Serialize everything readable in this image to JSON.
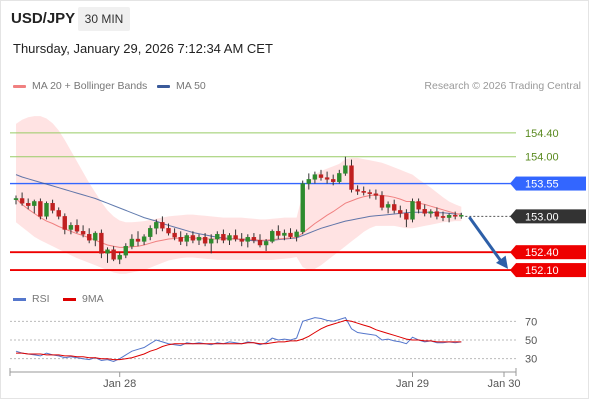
{
  "header": {
    "symbol": "USD/JPY",
    "timeframe": "30 MIN",
    "datetime": "Thursday, January 29, 2026 7:12:34 AM CET"
  },
  "legend": {
    "ma20_label": "MA 20 + Bollinger Bands",
    "ma20_color": "#f08080",
    "ma50_label": "MA 50",
    "ma50_color": "#3a5a9a",
    "credit": "Research © 2026 Trading Central"
  },
  "rsi_legend": {
    "rsi_label": "RSI",
    "rsi_color": "#5577cc",
    "ma_label": "9MA",
    "ma_color": "#dd0000"
  },
  "colors": {
    "up": "#2e8b2e",
    "down": "#c02020",
    "band": "#ffe0e0",
    "pivot": "#3366ff",
    "support": "#ee0000",
    "resistance": "#99cc66",
    "current": "#333333",
    "arrow": "#2d5fa8"
  },
  "chart_data": {
    "type": "candlestick",
    "ylim": [
      151.85,
      154.95
    ],
    "levels": [
      {
        "label": "154.40",
        "value": 154.4,
        "kind": "resistance"
      },
      {
        "label": "154.00",
        "value": 154.0,
        "kind": "resistance"
      },
      {
        "label": "153.55",
        "value": 153.55,
        "kind": "pivot"
      },
      {
        "label": "153.00",
        "value": 153.0,
        "kind": "current"
      },
      {
        "label": "152.40",
        "value": 152.4,
        "kind": "support"
      },
      {
        "label": "152.10",
        "value": 152.1,
        "kind": "support"
      }
    ],
    "x_ticks": [
      {
        "label": "Jan 28",
        "index": 17
      },
      {
        "label": "Jan 29",
        "index": 65
      },
      {
        "label": "Jan 30",
        "index": 80
      }
    ],
    "candles": [
      [
        153.28,
        153.35,
        153.2,
        153.3
      ],
      [
        153.3,
        153.4,
        153.18,
        153.22
      ],
      [
        153.22,
        153.3,
        153.12,
        153.18
      ],
      [
        153.18,
        153.28,
        153.05,
        153.25
      ],
      [
        153.25,
        153.3,
        152.95,
        153.0
      ],
      [
        153.0,
        153.25,
        152.95,
        153.22
      ],
      [
        153.22,
        153.28,
        153.05,
        153.1
      ],
      [
        153.1,
        153.15,
        152.95,
        153.0
      ],
      [
        153.0,
        153.05,
        152.7,
        152.78
      ],
      [
        152.78,
        152.9,
        152.7,
        152.85
      ],
      [
        152.85,
        152.95,
        152.72,
        152.75
      ],
      [
        152.75,
        152.85,
        152.65,
        152.7
      ],
      [
        152.7,
        152.8,
        152.55,
        152.6
      ],
      [
        152.6,
        152.75,
        152.5,
        152.72
      ],
      [
        152.72,
        152.78,
        152.3,
        152.38
      ],
      [
        152.38,
        152.48,
        152.22,
        152.44
      ],
      [
        152.44,
        152.5,
        152.25,
        152.28
      ],
      [
        152.28,
        152.4,
        152.2,
        152.35
      ],
      [
        152.35,
        152.55,
        152.3,
        152.5
      ],
      [
        152.5,
        152.7,
        152.45,
        152.62
      ],
      [
        152.62,
        152.75,
        152.5,
        152.58
      ],
      [
        152.58,
        152.7,
        152.52,
        152.66
      ],
      [
        152.66,
        152.85,
        152.6,
        152.8
      ],
      [
        152.8,
        152.95,
        152.7,
        152.9
      ],
      [
        152.9,
        153.0,
        152.75,
        152.8
      ],
      [
        152.8,
        152.88,
        152.68,
        152.72
      ],
      [
        152.72,
        152.8,
        152.6,
        152.65
      ],
      [
        152.65,
        152.75,
        152.52,
        152.58
      ],
      [
        152.58,
        152.72,
        152.5,
        152.68
      ],
      [
        152.68,
        152.75,
        152.55,
        152.6
      ],
      [
        152.6,
        152.7,
        152.52,
        152.65
      ],
      [
        152.65,
        152.72,
        152.5,
        152.55
      ],
      [
        152.55,
        152.7,
        152.38,
        152.62
      ],
      [
        152.62,
        152.75,
        152.55,
        152.7
      ],
      [
        152.7,
        152.78,
        152.55,
        152.6
      ],
      [
        152.6,
        152.72,
        152.52,
        152.68
      ],
      [
        152.68,
        152.78,
        152.58,
        152.62
      ],
      [
        152.62,
        152.72,
        152.5,
        152.58
      ],
      [
        152.58,
        152.7,
        152.48,
        152.65
      ],
      [
        152.65,
        152.72,
        152.55,
        152.6
      ],
      [
        152.6,
        152.7,
        152.48,
        152.52
      ],
      [
        152.52,
        152.62,
        152.42,
        152.58
      ],
      [
        152.58,
        152.78,
        152.55,
        152.75
      ],
      [
        152.75,
        152.85,
        152.62,
        152.68
      ],
      [
        152.68,
        152.78,
        152.6,
        152.72
      ],
      [
        152.72,
        152.8,
        152.62,
        152.66
      ],
      [
        152.66,
        152.78,
        152.58,
        152.74
      ],
      [
        152.74,
        153.6,
        152.7,
        153.55
      ],
      [
        153.55,
        153.72,
        153.45,
        153.62
      ],
      [
        153.62,
        153.75,
        153.55,
        153.7
      ],
      [
        153.7,
        153.78,
        153.6,
        153.65
      ],
      [
        153.65,
        153.75,
        153.55,
        153.62
      ],
      [
        153.62,
        153.7,
        153.52,
        153.58
      ],
      [
        153.58,
        153.78,
        153.55,
        153.72
      ],
      [
        153.72,
        154.0,
        153.68,
        153.85
      ],
      [
        153.85,
        153.95,
        153.4,
        153.45
      ],
      [
        153.45,
        153.52,
        153.36,
        153.42
      ],
      [
        153.42,
        153.5,
        153.35,
        153.4
      ],
      [
        153.4,
        153.45,
        153.3,
        153.38
      ],
      [
        153.38,
        153.45,
        153.28,
        153.35
      ],
      [
        153.35,
        153.42,
        153.1,
        153.15
      ],
      [
        153.15,
        153.25,
        153.05,
        153.2
      ],
      [
        153.2,
        153.28,
        153.05,
        153.1
      ],
      [
        153.1,
        153.18,
        152.98,
        153.05
      ],
      [
        153.05,
        153.12,
        152.82,
        152.95
      ],
      [
        152.95,
        153.3,
        152.9,
        153.25
      ],
      [
        153.25,
        153.3,
        153.05,
        153.12
      ],
      [
        153.12,
        153.2,
        153.0,
        153.05
      ],
      [
        153.05,
        153.12,
        152.98,
        153.08
      ],
      [
        153.08,
        153.15,
        152.95,
        153.0
      ],
      [
        153.0,
        153.08,
        152.92,
        152.98
      ],
      [
        152.98,
        153.05,
        152.9,
        153.02
      ],
      [
        153.02,
        153.08,
        152.95,
        153.0
      ],
      [
        153.0,
        153.06,
        152.96,
        153.02
      ]
    ],
    "ma20": [
      153.3,
      153.2,
      153.12,
      153.05,
      152.98,
      152.92,
      152.88,
      152.83,
      152.79,
      152.75,
      152.71,
      152.68,
      152.64,
      152.6,
      152.56,
      152.52,
      152.5,
      152.48,
      152.48,
      152.49,
      152.5,
      152.52,
      152.55,
      152.58,
      152.6,
      152.62,
      152.63,
      152.64,
      152.65,
      152.64,
      152.63,
      152.62,
      152.62,
      152.62,
      152.62,
      152.62,
      152.62,
      152.62,
      152.62,
      152.61,
      152.6,
      152.6,
      152.61,
      152.62,
      152.63,
      152.64,
      152.65,
      152.72,
      152.8,
      152.88,
      152.95,
      153.02,
      153.08,
      153.15,
      153.22,
      153.26,
      153.3,
      153.33,
      153.35,
      153.36,
      153.35,
      153.34,
      153.32,
      153.29,
      153.25,
      153.25,
      153.22,
      153.2,
      153.17,
      153.14,
      153.11,
      153.08,
      153.05,
      153.03
    ],
    "ma50": [
      153.7,
      153.66,
      153.63,
      153.6,
      153.57,
      153.54,
      153.51,
      153.48,
      153.45,
      153.42,
      153.39,
      153.36,
      153.33,
      153.3,
      153.26,
      153.22,
      153.18,
      153.14,
      153.1,
      153.06,
      153.02,
      152.98,
      152.95,
      152.92,
      152.88,
      152.85,
      152.82,
      152.79,
      152.76,
      152.73,
      152.71,
      152.69,
      152.67,
      152.65,
      152.64,
      152.63,
      152.62,
      152.61,
      152.6,
      152.59,
      152.59,
      152.59,
      152.6,
      152.61,
      152.62,
      152.63,
      152.64,
      152.68,
      152.72,
      152.76,
      152.8,
      152.83,
      152.86,
      152.89,
      152.92,
      152.94,
      152.96,
      152.98,
      153.0,
      153.01,
      153.02,
      153.03,
      153.04,
      153.05,
      153.06,
      153.07,
      153.07,
      153.07,
      153.07,
      153.06,
      153.06,
      153.05,
      153.04,
      153.04
    ],
    "band_upper": [
      154.55,
      154.62,
      154.66,
      154.68,
      154.68,
      154.64,
      154.56,
      154.44,
      154.28,
      154.1,
      153.92,
      153.74,
      153.56,
      153.4,
      153.24,
      153.1,
      153.0,
      152.93,
      152.9,
      152.9,
      152.91,
      152.92,
      152.94,
      152.96,
      152.98,
      153.0,
      153.01,
      153.02,
      153.03,
      153.03,
      153.02,
      153.01,
      153.0,
      152.99,
      152.98,
      152.98,
      152.98,
      152.98,
      152.97,
      152.96,
      152.95,
      152.95,
      152.96,
      152.97,
      152.98,
      152.98,
      152.98,
      153.38,
      153.58,
      153.7,
      153.76,
      153.8,
      153.84,
      153.88,
      153.96,
      153.98,
      153.98,
      153.96,
      153.94,
      153.92,
      153.9,
      153.86,
      153.82,
      153.78,
      153.74,
      153.7,
      153.62,
      153.55,
      153.48,
      153.4,
      153.32,
      153.25,
      153.2,
      153.16
    ],
    "band_lower": [
      152.9,
      152.82,
      152.74,
      152.66,
      152.6,
      152.55,
      152.5,
      152.45,
      152.4,
      152.35,
      152.3,
      152.26,
      152.22,
      152.18,
      152.14,
      152.1,
      152.06,
      152.04,
      152.04,
      152.06,
      152.08,
      152.1,
      152.14,
      152.18,
      152.22,
      152.26,
      152.28,
      152.3,
      152.31,
      152.31,
      152.3,
      152.29,
      152.28,
      152.27,
      152.27,
      152.27,
      152.27,
      152.27,
      152.27,
      152.27,
      152.27,
      152.27,
      152.27,
      152.28,
      152.29,
      152.3,
      152.32,
      152.15,
      152.1,
      152.12,
      152.18,
      152.26,
      152.34,
      152.42,
      152.5,
      152.58,
      152.66,
      152.74,
      152.8,
      152.84,
      152.84,
      152.84,
      152.84,
      152.82,
      152.8,
      152.8,
      152.82,
      152.84,
      152.86,
      152.88,
      152.9,
      152.91,
      152.92,
      152.92
    ],
    "rsi": {
      "ylim": [
        20,
        80
      ],
      "ticks": [
        70,
        50,
        30
      ],
      "rsi": [
        38,
        36,
        35,
        34,
        33,
        36,
        34,
        33,
        31,
        32,
        31,
        30,
        29,
        31,
        28,
        29,
        27,
        30,
        34,
        38,
        40,
        42,
        46,
        50,
        48,
        46,
        45,
        44,
        47,
        46,
        47,
        46,
        45,
        47,
        46,
        48,
        47,
        46,
        48,
        47,
        45,
        47,
        52,
        50,
        51,
        50,
        52,
        70,
        72,
        74,
        73,
        71,
        70,
        72,
        74,
        62,
        58,
        57,
        56,
        55,
        50,
        51,
        49,
        48,
        46,
        53,
        50,
        48,
        49,
        47,
        47,
        48,
        47,
        48
      ],
      "ma": [
        36,
        36,
        35,
        35,
        35,
        34,
        34,
        34,
        33,
        33,
        32,
        32,
        31,
        31,
        30,
        30,
        29,
        29,
        30,
        31,
        33,
        35,
        38,
        40,
        43,
        45,
        46,
        46,
        46,
        46,
        46,
        46,
        46,
        46,
        46,
        46,
        46,
        46,
        47,
        47,
        46,
        46,
        47,
        48,
        48,
        49,
        49,
        51,
        54,
        58,
        62,
        65,
        67,
        69,
        71,
        70,
        68,
        66,
        64,
        61,
        59,
        57,
        55,
        53,
        51,
        50,
        50,
        49,
        49,
        48,
        48,
        48,
        48,
        48
      ]
    }
  }
}
